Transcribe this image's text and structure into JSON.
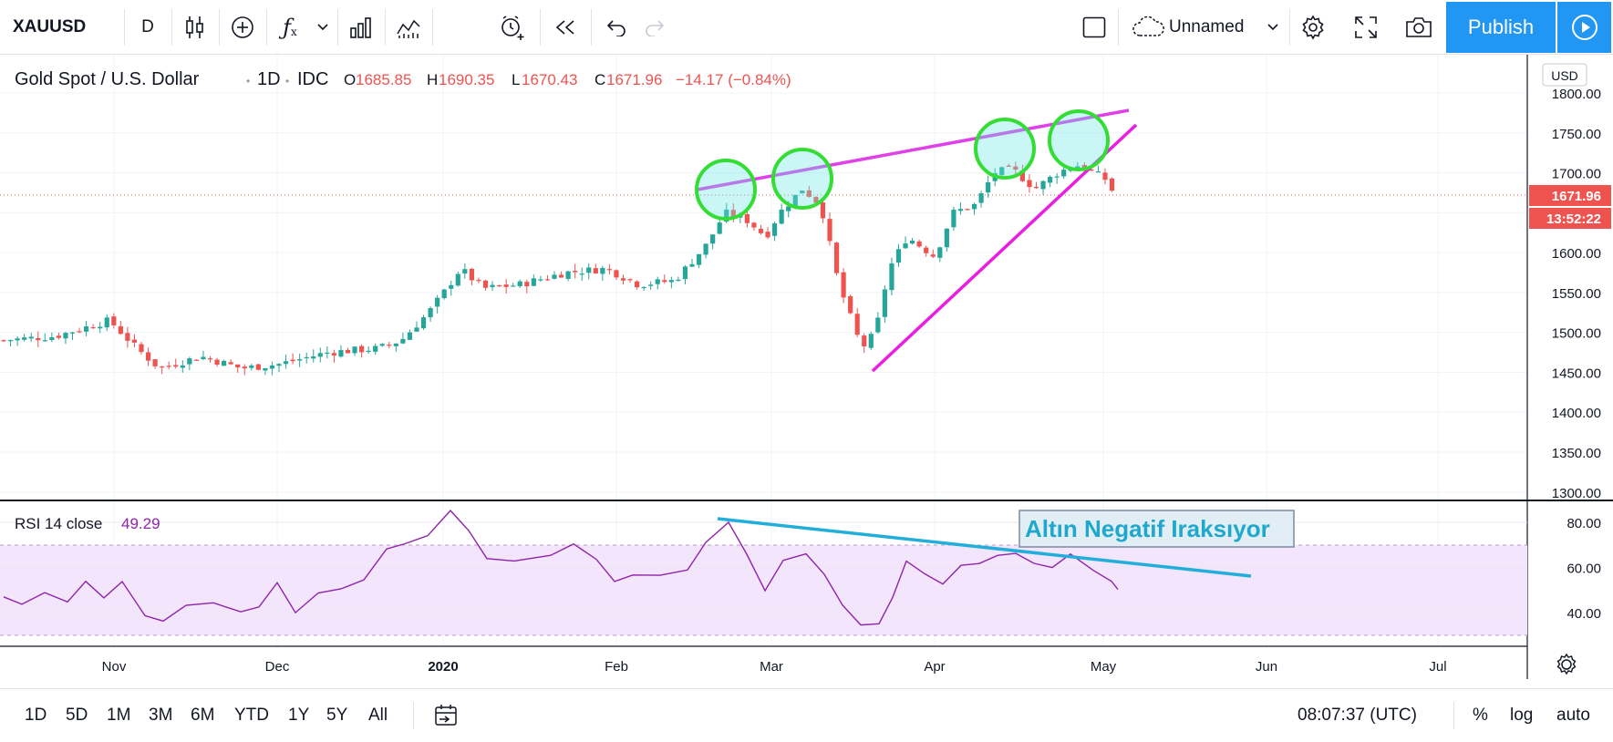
{
  "toolbar": {
    "symbol": "XAUUSD",
    "interval": "D",
    "layout_name": "Unnamed",
    "publish_label": "Publish"
  },
  "legend": {
    "title": "Gold Spot / U.S. Dollar",
    "interval": "1D",
    "exchange": "IDC",
    "o_label": "O",
    "o_value": "1685.85",
    "h_label": "H",
    "h_value": "1690.35",
    "l_label": "L",
    "l_value": "1670.43",
    "c_label": "C",
    "c_value": "1671.96",
    "change": "−14.17 (−0.84%)"
  },
  "price_axis": {
    "currency": "USD",
    "ticks": [
      "1800.00",
      "1750.00",
      "1700.00",
      "1650.00",
      "1600.00",
      "1550.00",
      "1500.00",
      "1450.00",
      "1400.00",
      "1350.00",
      "1300.00"
    ],
    "last_price": "1671.96",
    "countdown": "13:52:22"
  },
  "rsi": {
    "label": "RSI 14 close",
    "value": "49.29",
    "ticks": [
      "80.00",
      "60.00",
      "40.00"
    ],
    "annotation": "Altın Negatif Iraksıyor"
  },
  "time_axis": {
    "labels": [
      "Nov",
      "Dec",
      "2020",
      "Feb",
      "Mar",
      "Apr",
      "May",
      "Jun",
      "Jul"
    ]
  },
  "bottom": {
    "ranges": [
      "1D",
      "5D",
      "1M",
      "3M",
      "6M",
      "YTD",
      "1Y",
      "5Y",
      "All"
    ],
    "clock": "08:07:37 (UTC)",
    "percent": "%",
    "log": "log",
    "auto": "auto"
  },
  "colors": {
    "up": "#26a69a",
    "down": "#ef5350",
    "accent": "#2196f3",
    "trend": "#e91ee0",
    "rsi_line": "#8e24aa",
    "rsi_band": "#f3e5fb",
    "circle": "#33dd33",
    "rsi_trend": "#22aedb"
  },
  "chart_data": {
    "type": "candlestick",
    "symbol": "XAUUSD",
    "last": 1671.96,
    "ylim": [
      1300,
      1800
    ],
    "close_path": [
      [
        "Oct",
        1490
      ],
      [
        "Nov",
        1470
      ],
      [
        "Nov",
        1455
      ],
      [
        "Dec",
        1460
      ],
      [
        "Dec",
        1480
      ],
      [
        "2020",
        1520
      ],
      [
        "2020",
        1560
      ],
      [
        "Jan",
        1555
      ],
      [
        "Feb",
        1570
      ],
      [
        "Feb",
        1600
      ],
      [
        "Feb",
        1650
      ],
      [
        "Feb",
        1680
      ],
      [
        "Mar",
        1590
      ],
      [
        "Mar",
        1690
      ],
      [
        "Mar",
        1470
      ],
      [
        "Apr",
        1600
      ],
      [
        "Apr",
        1620
      ],
      [
        "Apr",
        1730
      ],
      [
        "Apr",
        1690
      ],
      [
        "May",
        1672
      ]
    ],
    "rsi": {
      "ylim": [
        25,
        90
      ],
      "upper": 70,
      "lower": 30
    }
  }
}
